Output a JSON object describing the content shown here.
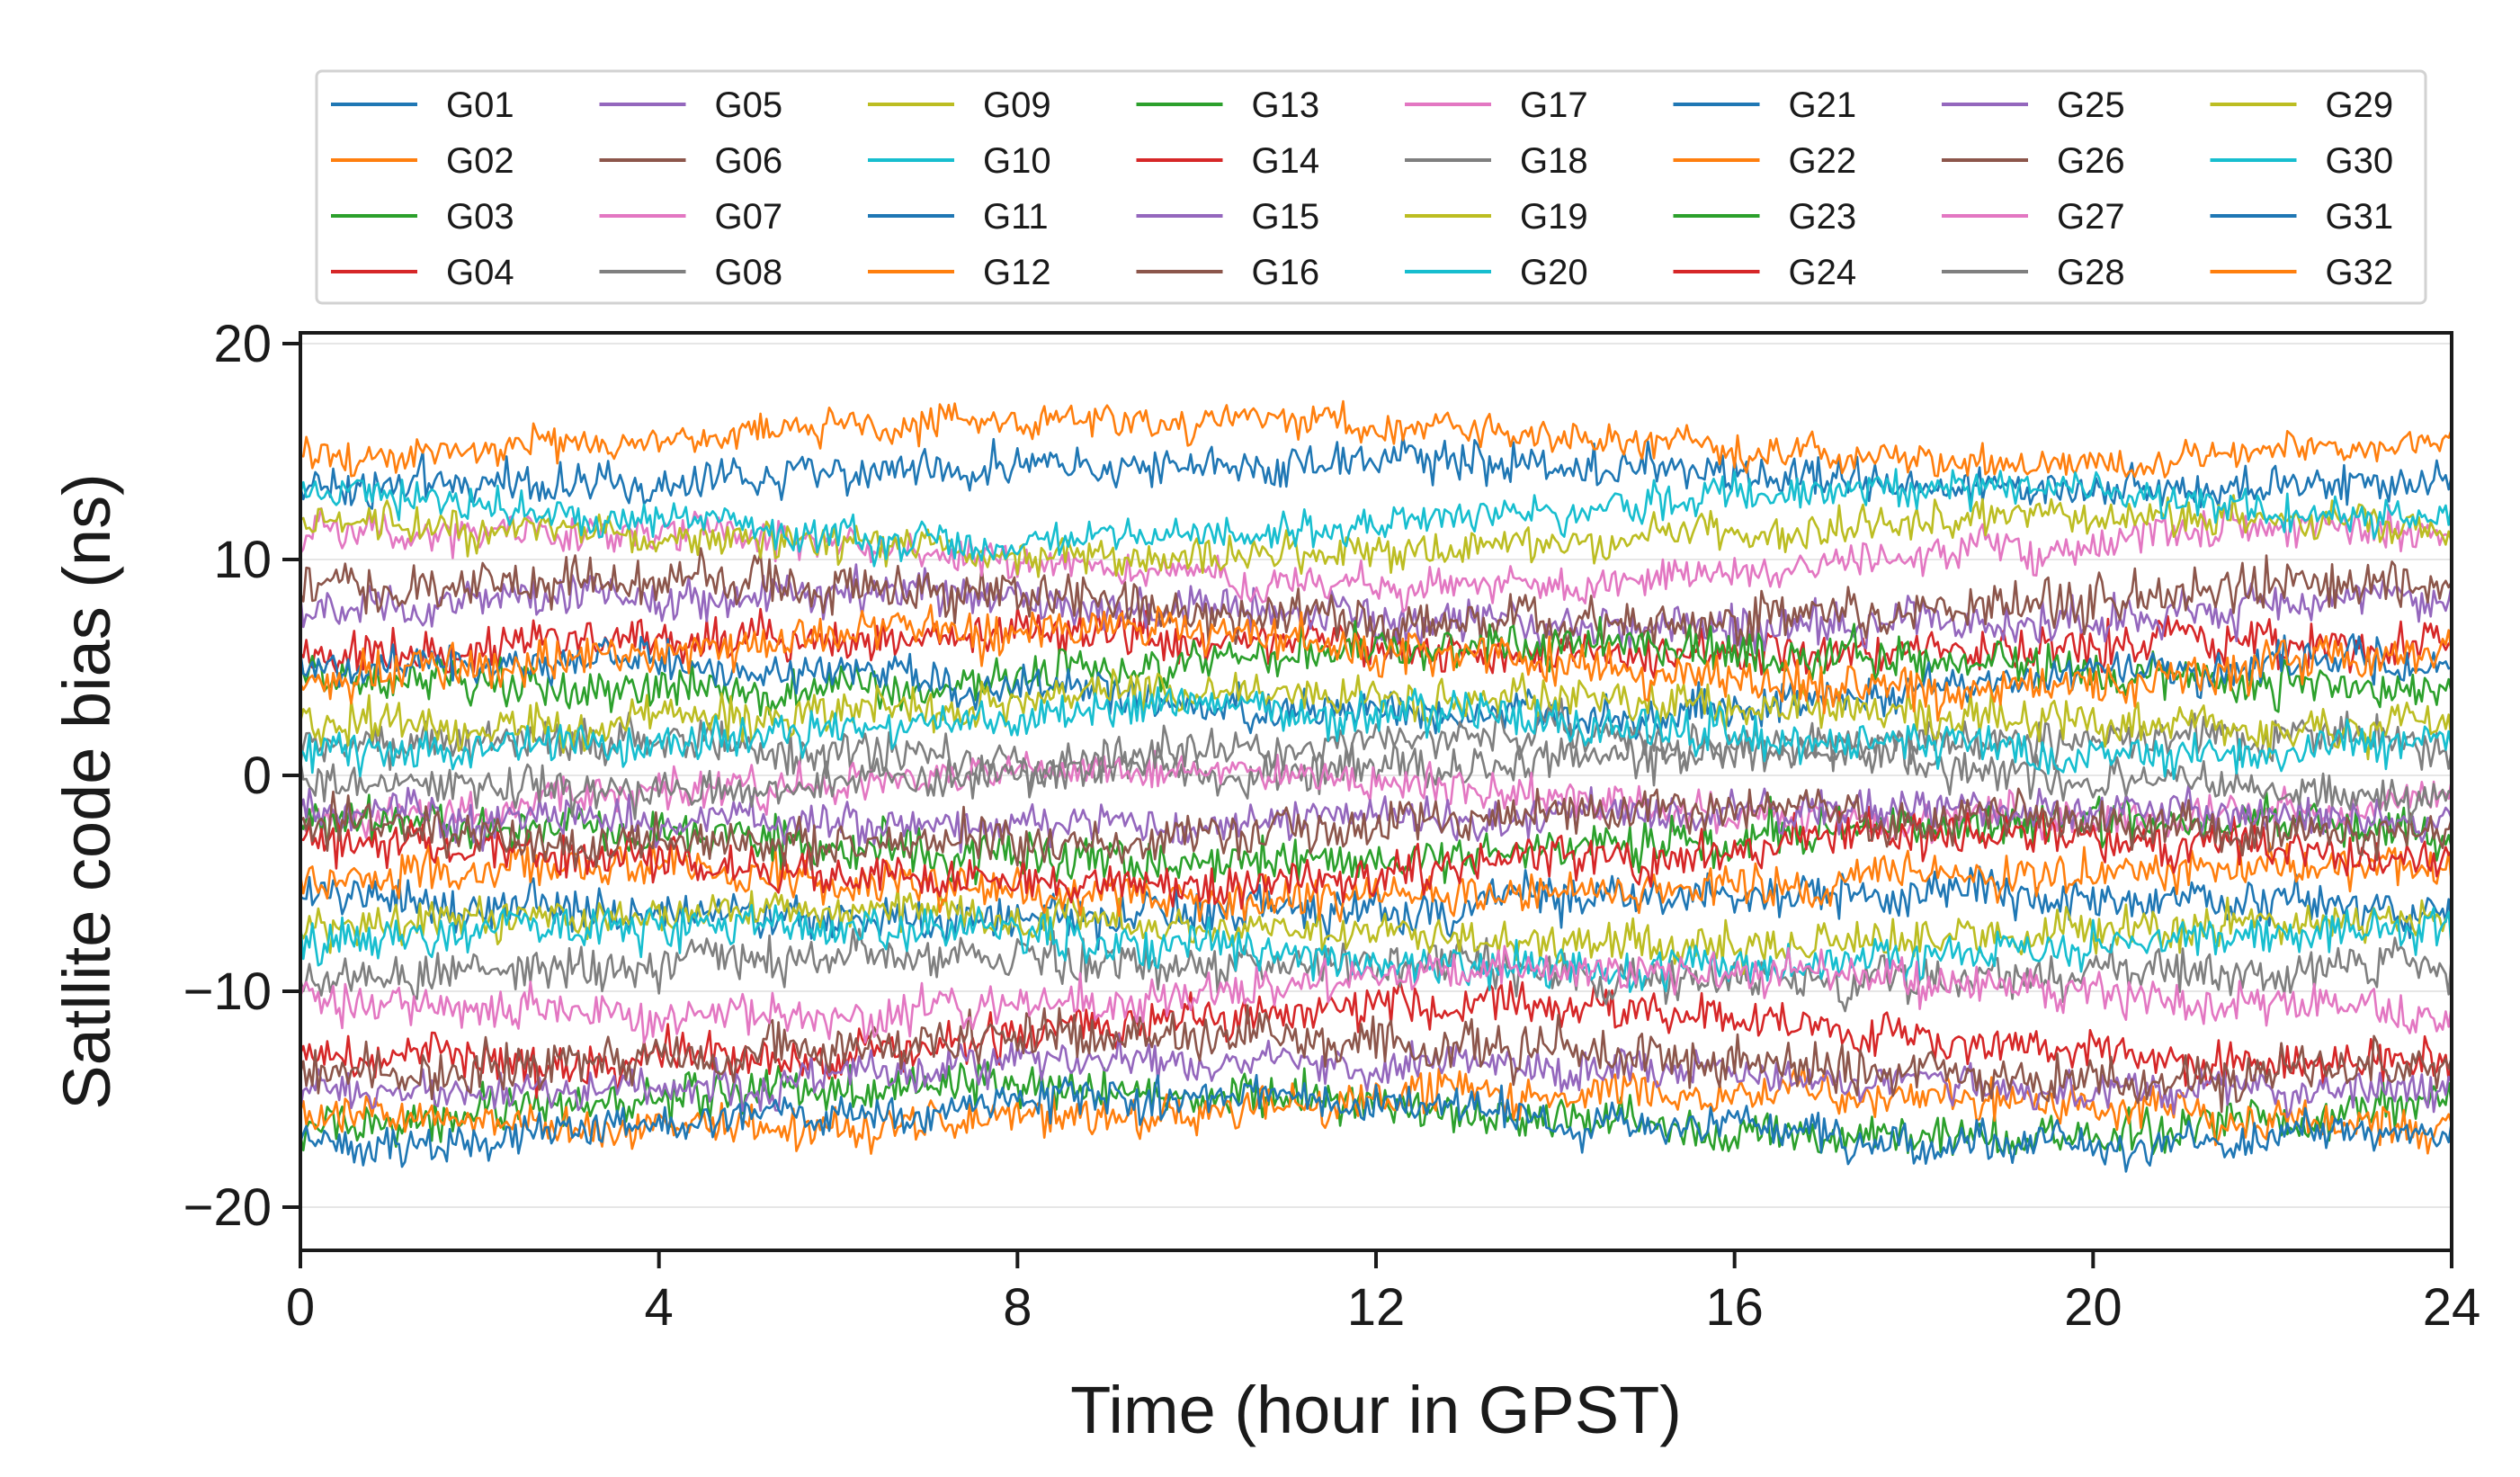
{
  "chart_data": {
    "type": "line",
    "title": "",
    "xlabel": "Time (hour in GPST)",
    "ylabel": "Satllite code bias (ns)",
    "xlim": [
      0,
      24
    ],
    "ylim": [
      -22,
      20.5
    ],
    "xticks": [
      0,
      4,
      8,
      12,
      16,
      20,
      24
    ],
    "yticks": [
      -20,
      -10,
      0,
      10,
      20
    ],
    "xtick_labels": [
      "0",
      "4",
      "8",
      "12",
      "16",
      "20",
      "24"
    ],
    "ytick_labels": [
      "−20",
      "−10",
      "0",
      "10",
      "20"
    ],
    "grid": "horizontal",
    "legend": {
      "position": "top-outside",
      "columns": 8
    },
    "palette": [
      "#1f77b4",
      "#ff7f0e",
      "#2ca02c",
      "#d62728",
      "#9467bd",
      "#8c564b",
      "#e377c2",
      "#7f7f7f",
      "#bcbd22",
      "#17becf"
    ],
    "series": [
      {
        "name": "G01",
        "mean": 14.0,
        "noise": 0.55
      },
      {
        "name": "G02",
        "mean": 15.6,
        "noise": 0.45
      },
      {
        "name": "G03",
        "mean": -15.5,
        "noise": 0.6
      },
      {
        "name": "G04",
        "mean": 6.0,
        "noise": 0.6
      },
      {
        "name": "G05",
        "mean": 7.5,
        "noise": 0.6
      },
      {
        "name": "G06",
        "mean": 8.0,
        "noise": 0.7
      },
      {
        "name": "G07",
        "mean": 10.0,
        "noise": 0.5
      },
      {
        "name": "G08",
        "mean": 1.0,
        "noise": 0.6
      },
      {
        "name": "G09",
        "mean": 11.0,
        "noise": 0.5
      },
      {
        "name": "G10",
        "mean": 12.0,
        "noise": 0.5
      },
      {
        "name": "G11",
        "mean": -6.0,
        "noise": 0.6
      },
      {
        "name": "G12",
        "mean": -15.5,
        "noise": 0.55
      },
      {
        "name": "G13",
        "mean": 5.0,
        "noise": 0.6
      },
      {
        "name": "G14",
        "mean": -12.0,
        "noise": 0.6
      },
      {
        "name": "G15",
        "mean": -14.0,
        "noise": 0.55
      },
      {
        "name": "G16",
        "mean": -13.0,
        "noise": 0.65
      },
      {
        "name": "G17",
        "mean": -1.0,
        "noise": 0.55
      },
      {
        "name": "G18",
        "mean": -9.0,
        "noise": 0.6
      },
      {
        "name": "G19",
        "mean": -7.0,
        "noise": 0.55
      },
      {
        "name": "G20",
        "mean": -8.0,
        "noise": 0.6
      },
      {
        "name": "G21",
        "mean": 4.0,
        "noise": 0.55
      },
      {
        "name": "G22",
        "mean": -5.0,
        "noise": 0.6
      },
      {
        "name": "G23",
        "mean": -3.0,
        "noise": 0.6
      },
      {
        "name": "G24",
        "mean": -4.0,
        "noise": 0.6
      },
      {
        "name": "G25",
        "mean": -2.0,
        "noise": 0.55
      },
      {
        "name": "G26",
        "mean": -2.5,
        "noise": 0.6
      },
      {
        "name": "G27",
        "mean": -10.0,
        "noise": 0.6
      },
      {
        "name": "G28",
        "mean": 0.5,
        "noise": 0.55
      },
      {
        "name": "G29",
        "mean": 3.0,
        "noise": 0.6
      },
      {
        "name": "G30",
        "mean": 2.0,
        "noise": 0.6
      },
      {
        "name": "G31",
        "mean": -16.0,
        "noise": 0.55
      },
      {
        "name": "G32",
        "mean": 5.5,
        "noise": 0.6
      }
    ]
  }
}
